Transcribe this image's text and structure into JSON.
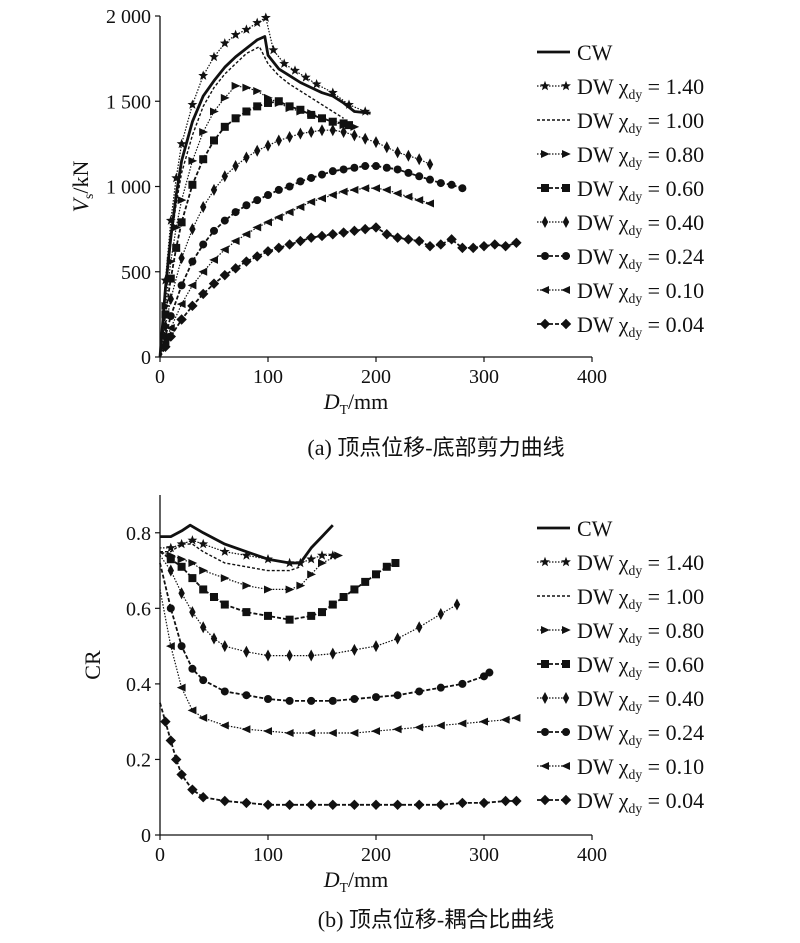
{
  "styles": [
    {
      "dash": "",
      "width": 2.8,
      "marker": "none"
    },
    {
      "dash": "1.5 1.5",
      "width": 1.2,
      "marker": "star"
    },
    {
      "dash": "3 2",
      "width": 1.4,
      "marker": "none"
    },
    {
      "dash": "1.5 1.5",
      "width": 1.2,
      "marker": "triR"
    },
    {
      "dash": "4 2",
      "width": 1.8,
      "marker": "square"
    },
    {
      "dash": "1.5 1.5",
      "width": 1.2,
      "marker": "diamondSlim"
    },
    {
      "dash": "4 2",
      "width": 1.8,
      "marker": "circle"
    },
    {
      "dash": "1.5 1.5",
      "width": 1.2,
      "marker": "triL"
    },
    {
      "dash": "4 2",
      "width": 1.8,
      "marker": "diamond"
    }
  ],
  "chart_data": [
    {
      "type": "line",
      "caption": "(a) 顶点位移-底部剪力曲线",
      "xlabel": {
        "main": "D",
        "sub": "T",
        "rest": "/mm"
      },
      "ylabel": {
        "main": "V",
        "sub": "s",
        "rest": "/kN"
      },
      "xlim": [
        0,
        400
      ],
      "ylim": [
        0,
        2000
      ],
      "xticks": [
        0,
        100,
        200,
        300,
        400
      ],
      "xtick_labels": [
        "0",
        "100",
        "200",
        "300",
        "400"
      ],
      "yticks": [
        0,
        500,
        1000,
        1500,
        2000
      ],
      "ytick_labels": [
        "0",
        "500",
        "1 000",
        "1 500",
        "2 000"
      ],
      "grid": false,
      "legend_position": "right",
      "series": [
        {
          "name": "CW",
          "label": {
            "main": "CW",
            "sub": "",
            "rest": ""
          },
          "x": [
            0,
            5,
            10,
            15,
            20,
            30,
            40,
            50,
            60,
            70,
            80,
            90,
            97,
            100,
            110,
            120,
            130,
            140,
            150,
            160,
            170,
            180,
            195
          ],
          "y": [
            0,
            400,
            700,
            950,
            1150,
            1380,
            1530,
            1620,
            1700,
            1760,
            1810,
            1860,
            1880,
            1770,
            1690,
            1650,
            1610,
            1580,
            1550,
            1530,
            1490,
            1440,
            1430
          ]
        },
        {
          "name": "DW χdy = 1.40",
          "label": {
            "main": "DW χ",
            "sub": "dy",
            "rest": " = 1.40"
          },
          "x": [
            0,
            5,
            10,
            15,
            20,
            30,
            40,
            50,
            60,
            70,
            80,
            90,
            98,
            105,
            115,
            125,
            135,
            145,
            160,
            175,
            190
          ],
          "y": [
            0,
            450,
            800,
            1050,
            1250,
            1480,
            1650,
            1760,
            1840,
            1890,
            1920,
            1960,
            1990,
            1800,
            1720,
            1680,
            1640,
            1600,
            1550,
            1480,
            1440
          ]
        },
        {
          "name": "DW χdy = 1.00",
          "label": {
            "main": "DW χ",
            "sub": "dy",
            "rest": " = 1.00"
          },
          "x": [
            0,
            5,
            10,
            15,
            20,
            30,
            40,
            50,
            60,
            70,
            80,
            92,
            100,
            110,
            120,
            130,
            140,
            150,
            160,
            170
          ],
          "y": [
            0,
            380,
            680,
            900,
            1080,
            1300,
            1470,
            1580,
            1660,
            1720,
            1780,
            1820,
            1720,
            1650,
            1600,
            1560,
            1520,
            1480,
            1440,
            1400
          ]
        },
        {
          "name": "DW χdy = 0.80",
          "label": {
            "main": "DW χ",
            "sub": "dy",
            "rest": " = 0.80"
          },
          "x": [
            0,
            5,
            10,
            15,
            20,
            30,
            40,
            50,
            60,
            70,
            80,
            90,
            100,
            110,
            120,
            130,
            140,
            150,
            160,
            170,
            180
          ],
          "y": [
            0,
            300,
            560,
            760,
            920,
            1150,
            1320,
            1440,
            1520,
            1590,
            1580,
            1560,
            1520,
            1490,
            1460,
            1440,
            1430,
            1400,
            1380,
            1360,
            1350
          ]
        },
        {
          "name": "DW χdy = 0.60",
          "label": {
            "main": "DW χ",
            "sub": "dy",
            "rest": " = 0.60"
          },
          "x": [
            0,
            5,
            10,
            15,
            20,
            30,
            40,
            50,
            60,
            70,
            80,
            90,
            100,
            110,
            120,
            130,
            140,
            150,
            160,
            170,
            175
          ],
          "y": [
            0,
            250,
            460,
            640,
            790,
            1010,
            1160,
            1270,
            1350,
            1400,
            1440,
            1470,
            1490,
            1500,
            1470,
            1450,
            1420,
            1400,
            1380,
            1370,
            1360
          ]
        },
        {
          "name": "DW χdy = 0.40",
          "label": {
            "main": "DW χ",
            "sub": "dy",
            "rest": " = 0.40"
          },
          "x": [
            0,
            5,
            10,
            20,
            30,
            40,
            50,
            60,
            70,
            80,
            90,
            100,
            110,
            120,
            130,
            140,
            150,
            160,
            170,
            180,
            190,
            200,
            210,
            220,
            230,
            240,
            250
          ],
          "y": [
            0,
            180,
            340,
            580,
            750,
            880,
            980,
            1060,
            1120,
            1170,
            1210,
            1240,
            1270,
            1290,
            1310,
            1320,
            1330,
            1330,
            1320,
            1300,
            1280,
            1260,
            1230,
            1200,
            1180,
            1160,
            1130
          ]
        },
        {
          "name": "DW χdy = 0.24",
          "label": {
            "main": "DW χ",
            "sub": "dy",
            "rest": " = 0.24"
          },
          "x": [
            0,
            5,
            10,
            20,
            30,
            40,
            50,
            60,
            70,
            80,
            90,
            100,
            110,
            120,
            130,
            140,
            150,
            160,
            170,
            180,
            190,
            200,
            210,
            220,
            230,
            240,
            250,
            260,
            270,
            280
          ],
          "y": [
            0,
            120,
            240,
            420,
            560,
            660,
            740,
            800,
            850,
            890,
            920,
            950,
            980,
            1000,
            1030,
            1050,
            1070,
            1090,
            1100,
            1110,
            1120,
            1120,
            1110,
            1100,
            1080,
            1060,
            1040,
            1020,
            1010,
            990
          ]
        },
        {
          "name": "DW χdy = 0.10",
          "label": {
            "main": "DW χ",
            "sub": "dy",
            "rest": " = 0.10"
          },
          "x": [
            0,
            5,
            10,
            20,
            30,
            40,
            50,
            60,
            70,
            80,
            90,
            100,
            110,
            120,
            130,
            140,
            150,
            160,
            170,
            180,
            190,
            200,
            210,
            220,
            230,
            240,
            250
          ],
          "y": [
            0,
            90,
            170,
            310,
            420,
            500,
            570,
            630,
            680,
            720,
            760,
            790,
            820,
            850,
            880,
            910,
            930,
            950,
            970,
            980,
            990,
            990,
            980,
            960,
            940,
            920,
            900
          ]
        },
        {
          "name": "DW χdy = 0.04",
          "label": {
            "main": "DW χ",
            "sub": "dy",
            "rest": " = 0.04"
          },
          "x": [
            0,
            5,
            10,
            20,
            30,
            40,
            50,
            60,
            70,
            80,
            90,
            100,
            110,
            120,
            130,
            140,
            150,
            160,
            170,
            180,
            190,
            200,
            210,
            220,
            230,
            240,
            250,
            260,
            270,
            280,
            290,
            300,
            310,
            320,
            330
          ],
          "y": [
            0,
            60,
            120,
            220,
            300,
            370,
            430,
            480,
            520,
            560,
            590,
            620,
            640,
            660,
            680,
            700,
            710,
            720,
            730,
            740,
            750,
            760,
            720,
            700,
            690,
            680,
            650,
            660,
            690,
            640,
            640,
            650,
            660,
            650,
            670
          ]
        }
      ]
    },
    {
      "type": "line",
      "caption": "(b) 顶点位移-耦合比曲线",
      "xlabel": {
        "main": "D",
        "sub": "T",
        "rest": "/mm"
      },
      "ylabel": {
        "main": "CR",
        "sub": "",
        "rest": ""
      },
      "xlim": [
        0,
        400
      ],
      "ylim": [
        0,
        0.9
      ],
      "xticks": [
        0,
        100,
        200,
        300,
        400
      ],
      "xtick_labels": [
        "0",
        "100",
        "200",
        "300",
        "400"
      ],
      "yticks": [
        0,
        0.2,
        0.4,
        0.6,
        0.8
      ],
      "ytick_labels": [
        "0",
        "0.2",
        "0.4",
        "0.6",
        "0.8"
      ],
      "grid": false,
      "legend_position": "right",
      "series": [
        {
          "name": "CW",
          "label": {
            "main": "CW",
            "sub": "",
            "rest": ""
          },
          "x": [
            0,
            10,
            20,
            28,
            40,
            60,
            80,
            100,
            120,
            130,
            140,
            150,
            160
          ],
          "y": [
            0.79,
            0.79,
            0.805,
            0.82,
            0.8,
            0.77,
            0.75,
            0.73,
            0.72,
            0.72,
            0.76,
            0.79,
            0.82
          ]
        },
        {
          "name": "DW χdy = 1.40",
          "label": {
            "main": "DW χ",
            "sub": "dy",
            "rest": " = 1.40"
          },
          "x": [
            0,
            10,
            20,
            30,
            40,
            60,
            80,
            100,
            120,
            130,
            140,
            150,
            160
          ],
          "y": [
            0.76,
            0.76,
            0.77,
            0.78,
            0.77,
            0.75,
            0.74,
            0.73,
            0.72,
            0.72,
            0.73,
            0.74,
            0.74
          ]
        },
        {
          "name": "DW χdy = 1.00",
          "label": {
            "main": "DW χ",
            "sub": "dy",
            "rest": " = 1.00"
          },
          "x": [
            0,
            10,
            20,
            30,
            40,
            60,
            80,
            100,
            120,
            130
          ],
          "y": [
            0.75,
            0.75,
            0.77,
            0.77,
            0.75,
            0.72,
            0.71,
            0.7,
            0.7,
            0.71
          ]
        },
        {
          "name": "DW χdy = 0.80",
          "label": {
            "main": "DW χ",
            "sub": "dy",
            "rest": " = 0.80"
          },
          "x": [
            0,
            10,
            20,
            30,
            40,
            60,
            80,
            100,
            120,
            130,
            140,
            150,
            165
          ],
          "y": [
            0.75,
            0.74,
            0.73,
            0.72,
            0.7,
            0.68,
            0.66,
            0.65,
            0.65,
            0.66,
            0.69,
            0.72,
            0.74
          ]
        },
        {
          "name": "DW χdy = 0.60",
          "label": {
            "main": "DW χ",
            "sub": "dy",
            "rest": " = 0.60"
          },
          "x": [
            0,
            10,
            20,
            30,
            40,
            50,
            60,
            80,
            100,
            120,
            140,
            150,
            160,
            170,
            180,
            190,
            200,
            210,
            218
          ],
          "y": [
            0.75,
            0.73,
            0.71,
            0.68,
            0.65,
            0.63,
            0.61,
            0.59,
            0.58,
            0.57,
            0.58,
            0.59,
            0.61,
            0.63,
            0.65,
            0.67,
            0.69,
            0.71,
            0.72
          ]
        },
        {
          "name": "DW χdy = 0.40",
          "label": {
            "main": "DW χ",
            "sub": "dy",
            "rest": " = 0.40"
          },
          "x": [
            0,
            10,
            20,
            30,
            40,
            50,
            60,
            80,
            100,
            120,
            140,
            160,
            180,
            200,
            220,
            240,
            260,
            275
          ],
          "y": [
            0.74,
            0.7,
            0.64,
            0.59,
            0.55,
            0.52,
            0.5,
            0.485,
            0.475,
            0.475,
            0.475,
            0.48,
            0.49,
            0.5,
            0.52,
            0.55,
            0.585,
            0.61
          ]
        },
        {
          "name": "DW χdy = 0.24",
          "label": {
            "main": "DW χ",
            "sub": "dy",
            "rest": " = 0.24"
          },
          "x": [
            0,
            10,
            20,
            30,
            40,
            60,
            80,
            100,
            120,
            140,
            160,
            180,
            200,
            220,
            240,
            260,
            280,
            300,
            305
          ],
          "y": [
            0.72,
            0.6,
            0.5,
            0.44,
            0.41,
            0.38,
            0.37,
            0.36,
            0.355,
            0.355,
            0.355,
            0.36,
            0.365,
            0.37,
            0.38,
            0.39,
            0.4,
            0.42,
            0.43
          ]
        },
        {
          "name": "DW χdy = 0.10",
          "label": {
            "main": "DW χ",
            "sub": "dy",
            "rest": " = 0.10"
          },
          "x": [
            0,
            10,
            20,
            30,
            40,
            60,
            80,
            100,
            120,
            140,
            160,
            180,
            200,
            220,
            240,
            260,
            280,
            300,
            320,
            330
          ],
          "y": [
            0.65,
            0.5,
            0.39,
            0.33,
            0.31,
            0.29,
            0.28,
            0.275,
            0.27,
            0.27,
            0.27,
            0.27,
            0.275,
            0.28,
            0.285,
            0.29,
            0.295,
            0.3,
            0.305,
            0.31
          ]
        },
        {
          "name": "DW χdy = 0.04",
          "label": {
            "main": "DW χ",
            "sub": "dy",
            "rest": " = 0.04"
          },
          "x": [
            0,
            5,
            10,
            15,
            20,
            30,
            40,
            60,
            80,
            100,
            120,
            140,
            160,
            180,
            200,
            220,
            240,
            260,
            280,
            300,
            320,
            330
          ],
          "y": [
            0.35,
            0.3,
            0.25,
            0.2,
            0.16,
            0.12,
            0.1,
            0.09,
            0.085,
            0.08,
            0.08,
            0.08,
            0.08,
            0.08,
            0.08,
            0.08,
            0.08,
            0.08,
            0.085,
            0.085,
            0.09,
            0.09
          ]
        }
      ]
    }
  ]
}
